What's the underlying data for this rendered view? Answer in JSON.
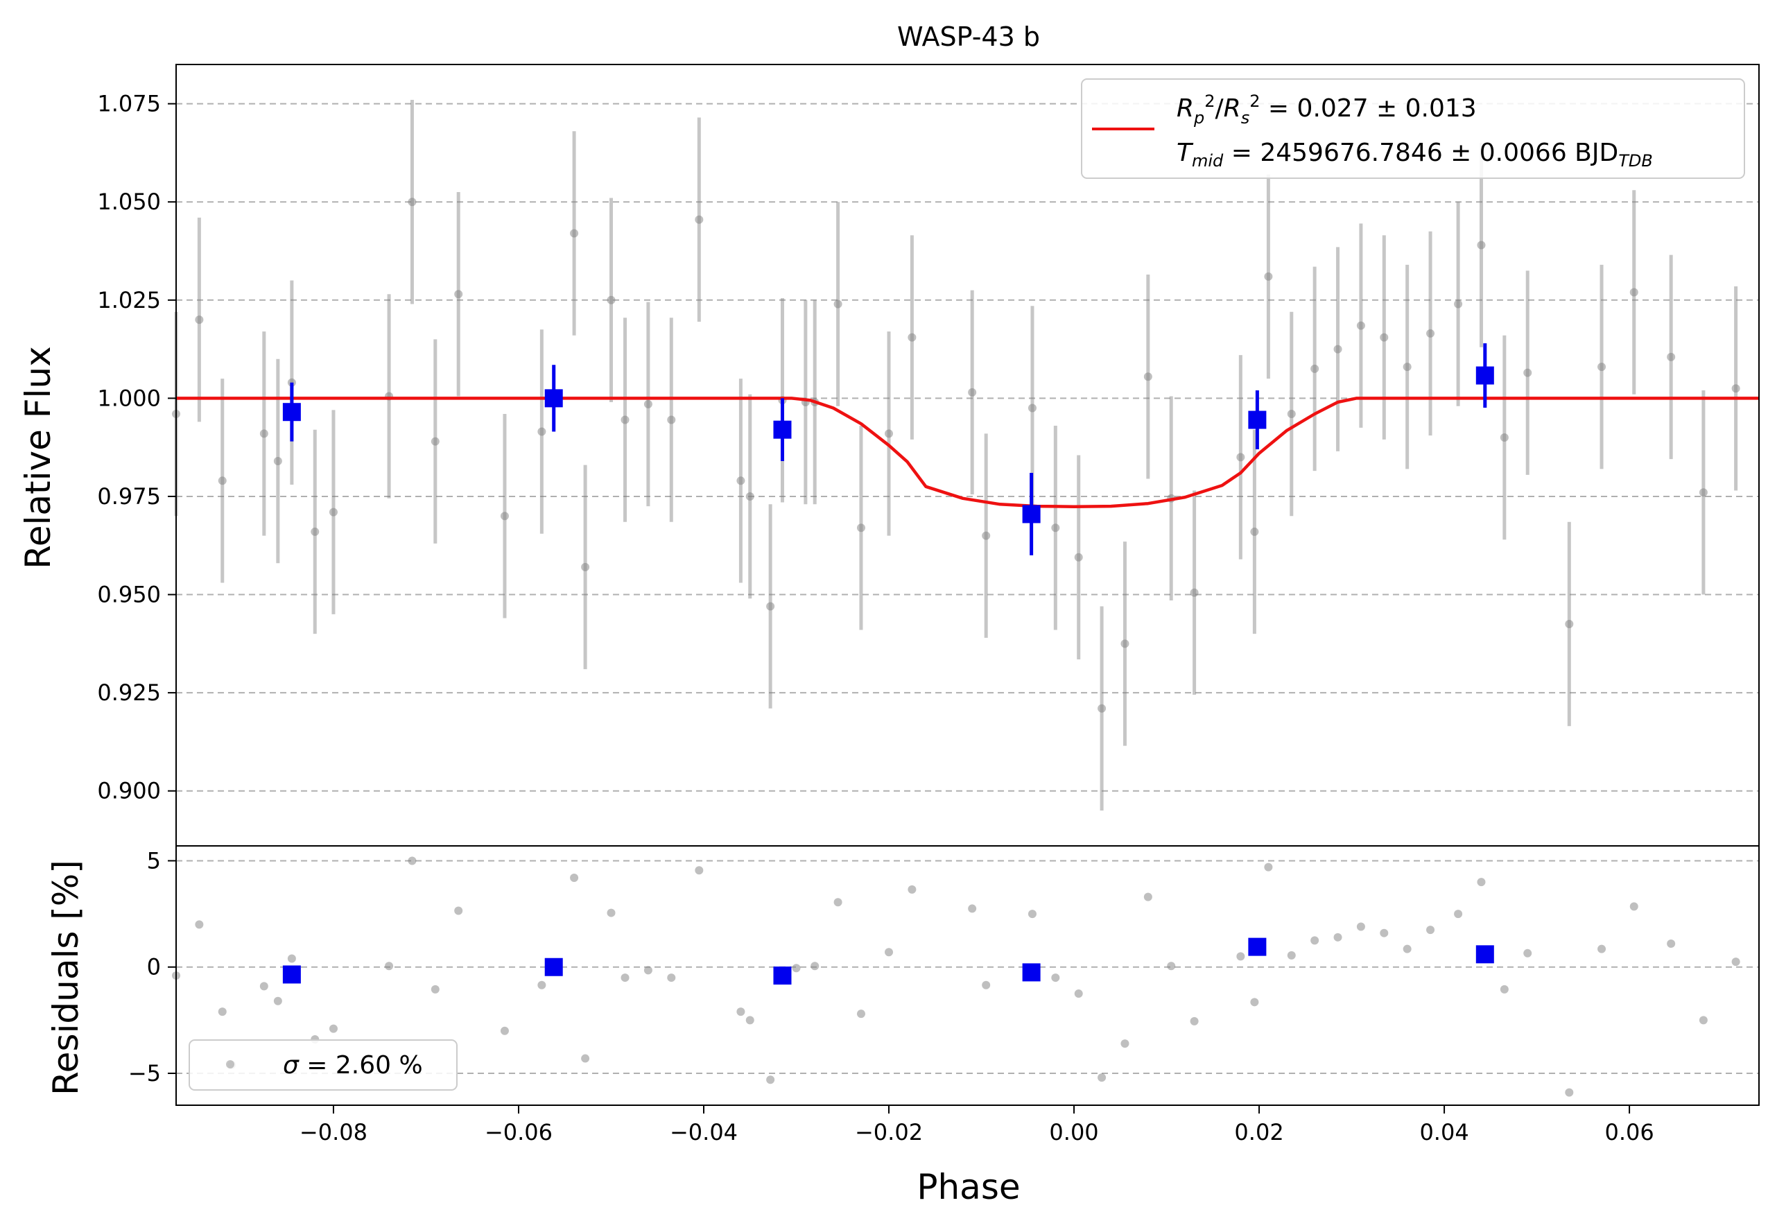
{
  "chart_data": [
    {
      "type": "scatter",
      "title": "WASP-43 b",
      "xlabel": "",
      "ylabel": "Relative Flux",
      "xlim": [
        -0.097,
        0.074
      ],
      "ylim": [
        0.886,
        1.085
      ],
      "grid": "horizontal dashed",
      "yticks": [
        "0.900",
        "0.925",
        "0.950",
        "0.975",
        "1.000",
        "1.025",
        "1.050",
        "1.075"
      ],
      "legend": {
        "placement": "top-right",
        "entries": [
          {
            "label": "R_p^2/R_s^2 = 0.027 ± 0.013",
            "color": "#ee1111"
          },
          {
            "label": "T_mid = 2459676.7846 ± 0.0066 BJD_TDB"
          }
        ]
      },
      "series": [
        {
          "kind": "binned_data",
          "color": "#0000ee",
          "x": [
            -0.0845,
            -0.0562,
            -0.0315,
            -0.0046,
            0.0198,
            0.0444
          ],
          "y": [
            0.9965,
            1.0,
            0.992,
            0.9705,
            0.9945,
            1.0058
          ],
          "err": [
            0.0075,
            0.0085,
            0.008,
            0.0105,
            0.0075,
            0.0082
          ]
        },
        {
          "kind": "model",
          "color": "#ee1111",
          "x": [
            -0.097,
            -0.0305,
            -0.0285,
            -0.026,
            -0.023,
            -0.02,
            -0.018,
            -0.016,
            -0.012,
            -0.008,
            -0.004,
            0.0,
            0.004,
            0.008,
            0.012,
            0.016,
            0.018,
            0.02,
            0.023,
            0.026,
            0.0285,
            0.0305,
            0.074
          ],
          "y": [
            1.0,
            1.0,
            0.9995,
            0.9975,
            0.9935,
            0.988,
            0.9838,
            0.9775,
            0.9745,
            0.973,
            0.9725,
            0.9724,
            0.9725,
            0.9732,
            0.9748,
            0.9778,
            0.981,
            0.986,
            0.9918,
            0.996,
            0.999,
            1.0,
            1.0
          ]
        },
        {
          "kind": "raw_data",
          "color": "#808080",
          "x": [
            -0.097,
            -0.0945,
            -0.092,
            -0.0875,
            -0.086,
            -0.0845,
            -0.082,
            -0.08,
            -0.074,
            -0.0715,
            -0.069,
            -0.0665,
            -0.0615,
            -0.0575,
            -0.054,
            -0.0528,
            -0.05,
            -0.0485,
            -0.046,
            -0.0435,
            -0.0405,
            -0.036,
            -0.035,
            -0.0328,
            -0.0315,
            -0.029,
            -0.028,
            -0.0255,
            -0.023,
            -0.02,
            -0.0175,
            -0.011,
            -0.0095,
            -0.0045,
            -0.002,
            0.0005,
            0.003,
            0.0055,
            0.008,
            0.0105,
            0.013,
            0.018,
            0.0195,
            0.021,
            0.0235,
            0.026,
            0.0285,
            0.031,
            0.0335,
            0.036,
            0.0385,
            0.0415,
            0.044,
            0.0465,
            0.049,
            0.0535,
            0.057,
            0.0605,
            0.0645,
            0.068,
            0.0715,
            0.0745
          ],
          "y": [
            0.996,
            1.02,
            0.979,
            0.991,
            0.984,
            1.004,
            0.966,
            0.971,
            1.0005,
            1.05,
            0.989,
            1.0265,
            0.97,
            0.9915,
            1.042,
            0.957,
            1.025,
            0.9945,
            0.9985,
            0.9945,
            1.0455,
            0.979,
            0.975,
            0.947,
            0.9995,
            0.999,
            0.999,
            1.024,
            0.967,
            0.991,
            1.0155,
            1.0015,
            0.965,
            0.9975,
            0.967,
            0.9595,
            0.921,
            0.9375,
            1.0055,
            0.9745,
            0.9505,
            0.985,
            0.966,
            1.031,
            0.996,
            1.0075,
            1.0125,
            1.0185,
            1.0155,
            1.008,
            1.0165,
            1.024,
            1.039,
            0.99,
            1.0065,
            0.9425,
            1.008,
            1.027,
            1.0105,
            0.976,
            1.0025,
            0.957
          ],
          "err": 0.026
        }
      ]
    },
    {
      "type": "scatter",
      "title": "",
      "xlabel": "Phase",
      "ylabel": "Residuals [%]",
      "xlim": [
        -0.097,
        0.074
      ],
      "ylim": [
        -6.5,
        5.7
      ],
      "grid": "horizontal dashed",
      "yticks": [
        "5",
        "0",
        "−5"
      ],
      "xticks": [
        "−0.08",
        "−0.06",
        "−0.04",
        "−0.02",
        "0.00",
        "0.02",
        "0.04",
        "0.06"
      ],
      "xtick_values": [
        -0.08,
        -0.06,
        -0.04,
        -0.02,
        0.0,
        0.02,
        0.04,
        0.06
      ],
      "legend": {
        "placement": "bottom-left",
        "entries": [
          {
            "label": "σ = 2.60 %",
            "color": "#808080"
          }
        ]
      },
      "series": [
        {
          "kind": "binned_residuals",
          "color": "#0000ee",
          "x": [
            -0.0845,
            -0.0562,
            -0.0315,
            -0.0046,
            0.0198,
            0.0444
          ],
          "y": [
            -0.35,
            0.0,
            -0.4,
            -0.25,
            0.95,
            0.6
          ]
        },
        {
          "kind": "raw_residuals",
          "color": "#808080",
          "x": [
            -0.097,
            -0.0945,
            -0.092,
            -0.091,
            -0.0875,
            -0.086,
            -0.0845,
            -0.082,
            -0.08,
            -0.074,
            -0.0715,
            -0.069,
            -0.0665,
            -0.0615,
            -0.0575,
            -0.054,
            -0.0528,
            -0.05,
            -0.0485,
            -0.046,
            -0.0435,
            -0.0405,
            -0.036,
            -0.035,
            -0.0328,
            -0.03,
            -0.028,
            -0.0255,
            -0.023,
            -0.02,
            -0.0175,
            -0.011,
            -0.0095,
            -0.0045,
            -0.002,
            0.0005,
            0.003,
            0.0055,
            0.008,
            0.0105,
            0.013,
            0.018,
            0.0195,
            0.021,
            0.0235,
            0.026,
            0.0285,
            0.031,
            0.0335,
            0.036,
            0.0385,
            0.0415,
            0.044,
            0.0465,
            0.049,
            0.0535,
            0.057,
            0.0605,
            0.0645,
            0.068,
            0.0715,
            0.0745
          ],
          "y": [
            -0.4,
            2.0,
            -2.1,
            -4.6,
            -0.9,
            -1.6,
            0.4,
            -3.4,
            -2.9,
            0.05,
            5.0,
            -1.05,
            2.65,
            -3.0,
            -0.85,
            4.2,
            -4.3,
            2.55,
            -0.5,
            -0.15,
            -0.5,
            4.55,
            -2.1,
            -2.5,
            -5.3,
            -0.05,
            0.05,
            3.05,
            -2.2,
            0.7,
            3.65,
            2.75,
            -0.85,
            2.5,
            -0.5,
            -1.25,
            -5.2,
            -3.6,
            3.3,
            0.05,
            -2.55,
            0.5,
            -1.65,
            4.7,
            0.55,
            1.25,
            1.4,
            1.9,
            1.6,
            0.85,
            1.75,
            2.5,
            4.0,
            -1.05,
            0.65,
            -5.9,
            0.85,
            2.85,
            1.1,
            -2.5,
            0.25,
            -4.6
          ]
        }
      ]
    }
  ]
}
